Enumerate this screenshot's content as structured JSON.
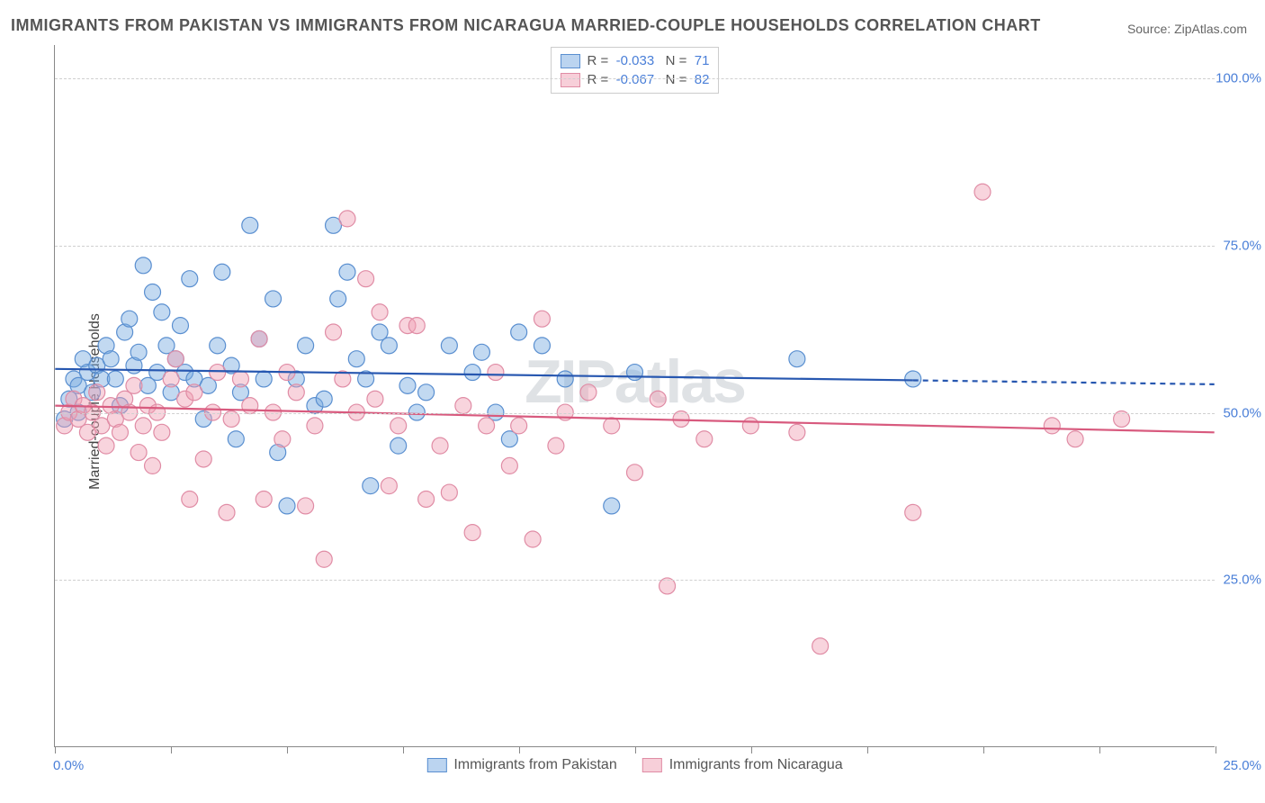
{
  "title": "IMMIGRANTS FROM PAKISTAN VS IMMIGRANTS FROM NICARAGUA MARRIED-COUPLE HOUSEHOLDS CORRELATION CHART",
  "source": "Source: ZipAtlas.com",
  "ylabel": "Married-couple Households",
  "watermark": "ZIPatlas",
  "chart": {
    "type": "scatter",
    "x_range": [
      0,
      25
    ],
    "y_range": [
      0,
      105
    ],
    "x_ticks": [
      0,
      2.5,
      5,
      7.5,
      10,
      12.5,
      15,
      17.5,
      20,
      22.5,
      25
    ],
    "x_tick_labels": {
      "0": "0.0%",
      "25": "25.0%"
    },
    "y_gridlines": [
      25,
      50,
      75,
      100
    ],
    "y_tick_labels": {
      "25": "25.0%",
      "50": "50.0%",
      "75": "75.0%",
      "100": "100.0%"
    },
    "background_color": "#ffffff",
    "grid_color": "#d0d0d0",
    "axis_color": "#888888",
    "marker_radius": 9,
    "marker_opacity": 0.45,
    "series": [
      {
        "name": "Immigrants from Pakistan",
        "fill_color": "#78aae1",
        "stroke_color": "#5a8fd0",
        "R": "-0.033",
        "N": "71",
        "regression": {
          "y_start": 56.5,
          "y_end": 54.2,
          "x_solid_end": 18.5,
          "line_color": "#2757b0",
          "line_width": 2.2
        },
        "points": [
          [
            0.2,
            49
          ],
          [
            0.3,
            52
          ],
          [
            0.4,
            55
          ],
          [
            0.5,
            54
          ],
          [
            0.5,
            50
          ],
          [
            0.6,
            58
          ],
          [
            0.7,
            56
          ],
          [
            0.8,
            53
          ],
          [
            0.9,
            57
          ],
          [
            1.0,
            55
          ],
          [
            1.1,
            60
          ],
          [
            1.2,
            58
          ],
          [
            1.3,
            55
          ],
          [
            1.4,
            51
          ],
          [
            1.5,
            62
          ],
          [
            1.6,
            64
          ],
          [
            1.7,
            57
          ],
          [
            1.8,
            59
          ],
          [
            1.9,
            72
          ],
          [
            2.0,
            54
          ],
          [
            2.1,
            68
          ],
          [
            2.2,
            56
          ],
          [
            2.3,
            65
          ],
          [
            2.4,
            60
          ],
          [
            2.5,
            53
          ],
          [
            2.6,
            58
          ],
          [
            2.7,
            63
          ],
          [
            2.8,
            56
          ],
          [
            2.9,
            70
          ],
          [
            3.0,
            55
          ],
          [
            3.2,
            49
          ],
          [
            3.3,
            54
          ],
          [
            3.5,
            60
          ],
          [
            3.6,
            71
          ],
          [
            3.8,
            57
          ],
          [
            3.9,
            46
          ],
          [
            4.0,
            53
          ],
          [
            4.2,
            78
          ],
          [
            4.4,
            61
          ],
          [
            4.5,
            55
          ],
          [
            4.7,
            67
          ],
          [
            4.8,
            44
          ],
          [
            5.0,
            36
          ],
          [
            5.2,
            55
          ],
          [
            5.4,
            60
          ],
          [
            5.6,
            51
          ],
          [
            5.8,
            52
          ],
          [
            6.0,
            78
          ],
          [
            6.1,
            67
          ],
          [
            6.3,
            71
          ],
          [
            6.5,
            58
          ],
          [
            6.7,
            55
          ],
          [
            6.8,
            39
          ],
          [
            7.0,
            62
          ],
          [
            7.2,
            60
          ],
          [
            7.4,
            45
          ],
          [
            7.6,
            54
          ],
          [
            7.8,
            50
          ],
          [
            8.0,
            53
          ],
          [
            8.5,
            60
          ],
          [
            9.0,
            56
          ],
          [
            9.2,
            59
          ],
          [
            9.5,
            50
          ],
          [
            9.8,
            46
          ],
          [
            10.0,
            62
          ],
          [
            10.5,
            60
          ],
          [
            11.0,
            55
          ],
          [
            12.0,
            36
          ],
          [
            12.5,
            56
          ],
          [
            16.0,
            58
          ],
          [
            18.5,
            55
          ]
        ]
      },
      {
        "name": "Immigrants from Nicaragua",
        "fill_color": "#f0a0b4",
        "stroke_color": "#e08ca5",
        "R": "-0.067",
        "N": "82",
        "regression": {
          "y_start": 51.0,
          "y_end": 47.0,
          "x_solid_end": 25,
          "line_color": "#d85a7e",
          "line_width": 2.2
        },
        "points": [
          [
            0.2,
            48
          ],
          [
            0.3,
            50
          ],
          [
            0.4,
            52
          ],
          [
            0.5,
            49
          ],
          [
            0.6,
            51
          ],
          [
            0.7,
            47
          ],
          [
            0.8,
            50
          ],
          [
            0.9,
            53
          ],
          [
            1.0,
            48
          ],
          [
            1.1,
            45
          ],
          [
            1.2,
            51
          ],
          [
            1.3,
            49
          ],
          [
            1.4,
            47
          ],
          [
            1.5,
            52
          ],
          [
            1.6,
            50
          ],
          [
            1.7,
            54
          ],
          [
            1.8,
            44
          ],
          [
            1.9,
            48
          ],
          [
            2.0,
            51
          ],
          [
            2.1,
            42
          ],
          [
            2.2,
            50
          ],
          [
            2.3,
            47
          ],
          [
            2.5,
            55
          ],
          [
            2.6,
            58
          ],
          [
            2.8,
            52
          ],
          [
            2.9,
            37
          ],
          [
            3.0,
            53
          ],
          [
            3.2,
            43
          ],
          [
            3.4,
            50
          ],
          [
            3.5,
            56
          ],
          [
            3.7,
            35
          ],
          [
            3.8,
            49
          ],
          [
            4.0,
            55
          ],
          [
            4.2,
            51
          ],
          [
            4.4,
            61
          ],
          [
            4.5,
            37
          ],
          [
            4.7,
            50
          ],
          [
            4.9,
            46
          ],
          [
            5.0,
            56
          ],
          [
            5.2,
            53
          ],
          [
            5.4,
            36
          ],
          [
            5.6,
            48
          ],
          [
            5.8,
            28
          ],
          [
            6.0,
            62
          ],
          [
            6.2,
            55
          ],
          [
            6.3,
            79
          ],
          [
            6.5,
            50
          ],
          [
            6.7,
            70
          ],
          [
            6.9,
            52
          ],
          [
            7.0,
            65
          ],
          [
            7.2,
            39
          ],
          [
            7.4,
            48
          ],
          [
            7.6,
            63
          ],
          [
            7.8,
            63
          ],
          [
            8.0,
            37
          ],
          [
            8.3,
            45
          ],
          [
            8.5,
            38
          ],
          [
            8.8,
            51
          ],
          [
            9.0,
            32
          ],
          [
            9.3,
            48
          ],
          [
            9.5,
            56
          ],
          [
            9.8,
            42
          ],
          [
            10.0,
            48
          ],
          [
            10.3,
            31
          ],
          [
            10.5,
            64
          ],
          [
            10.8,
            45
          ],
          [
            11.0,
            50
          ],
          [
            11.5,
            53
          ],
          [
            12.0,
            48
          ],
          [
            12.5,
            41
          ],
          [
            13.0,
            52
          ],
          [
            13.2,
            24
          ],
          [
            13.5,
            49
          ],
          [
            14.0,
            46
          ],
          [
            15.0,
            48
          ],
          [
            16.0,
            47
          ],
          [
            16.5,
            15
          ],
          [
            18.5,
            35
          ],
          [
            20.0,
            83
          ],
          [
            21.5,
            48
          ],
          [
            22.0,
            46
          ],
          [
            23.0,
            49
          ]
        ]
      }
    ]
  },
  "legend_bottom": [
    {
      "swatch": "blue",
      "label": "Immigrants from Pakistan"
    },
    {
      "swatch": "pink",
      "label": "Immigrants from Nicaragua"
    }
  ]
}
